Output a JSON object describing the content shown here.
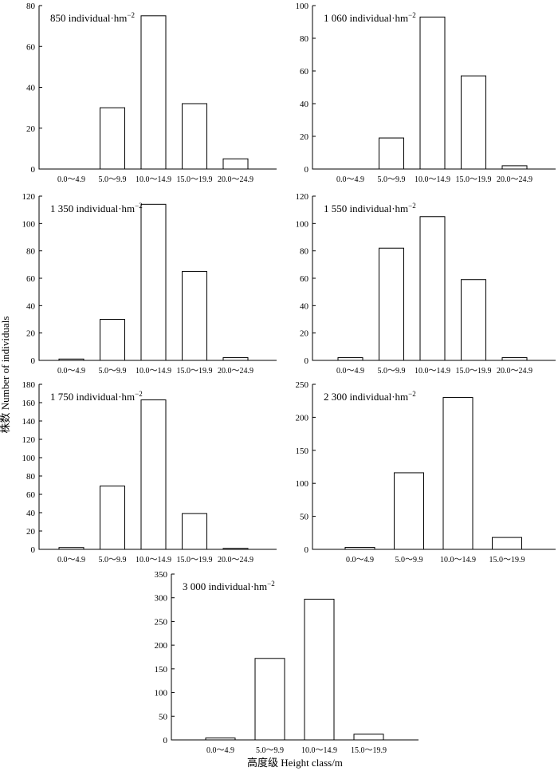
{
  "figure": {
    "ylabel": "株数 Number of individuals",
    "xlabel": "高度级 Height class/m"
  },
  "chart_data": [
    {
      "type": "bar",
      "title": "850 individual·hm",
      "title_sup": "−2",
      "categories": [
        "0.0～4.9",
        "5.0～9.9",
        "10.0～14.9",
        "15.0～19.9",
        "20.0～24.9"
      ],
      "values": [
        0,
        30,
        75,
        32,
        5
      ],
      "ylim": [
        0,
        80
      ],
      "yticks": [
        0,
        20,
        40,
        60,
        80
      ]
    },
    {
      "type": "bar",
      "title": "1 060 individual·hm",
      "title_sup": "−2",
      "categories": [
        "0.0～4.9",
        "5.0～9.9",
        "10.0～14.9",
        "15.0～19.9",
        "20.0～24.9"
      ],
      "values": [
        0,
        19,
        93,
        57,
        2
      ],
      "ylim": [
        0,
        100
      ],
      "yticks": [
        0,
        20,
        40,
        60,
        80,
        100
      ]
    },
    {
      "type": "bar",
      "title": "1 350 individual·hm",
      "title_sup": "−2",
      "categories": [
        "0.0～4.9",
        "5.0～9.9",
        "10.0～14.9",
        "15.0～19.9",
        "20.0～24.9"
      ],
      "values": [
        1,
        30,
        114,
        65,
        2
      ],
      "ylim": [
        0,
        120
      ],
      "yticks": [
        0,
        20,
        40,
        60,
        80,
        100,
        120
      ]
    },
    {
      "type": "bar",
      "title": "1 550 individual·hm",
      "title_sup": "−2",
      "categories": [
        "0.0～4.9",
        "5.0～9.9",
        "10.0～14.9",
        "15.0～19.9",
        "20.0～24.9"
      ],
      "values": [
        2,
        82,
        105,
        59,
        2
      ],
      "ylim": [
        0,
        120
      ],
      "yticks": [
        0,
        20,
        40,
        60,
        80,
        100,
        120
      ]
    },
    {
      "type": "bar",
      "title": "1 750 individual·hm",
      "title_sup": "−2",
      "categories": [
        "0.0～4.9",
        "5.0～9.9",
        "10.0～14.9",
        "15.0～19.9",
        "20.0～24.9"
      ],
      "values": [
        2,
        69,
        163,
        39,
        1
      ],
      "ylim": [
        0,
        180
      ],
      "yticks": [
        0,
        20,
        40,
        60,
        80,
        100,
        120,
        140,
        160,
        180
      ]
    },
    {
      "type": "bar",
      "title": "2 300 individual·hm",
      "title_sup": "−2",
      "categories": [
        "0.0～4.9",
        "5.0～9.9",
        "10.0～14.9",
        "15.0～19.9"
      ],
      "values": [
        3,
        116,
        230,
        18
      ],
      "ylim": [
        0,
        250
      ],
      "yticks": [
        0,
        50,
        100,
        150,
        200,
        250
      ]
    },
    {
      "type": "bar",
      "title": "3 000 individual·hm",
      "title_sup": "−2",
      "categories": [
        "0.0～4.9",
        "5.0～9.9",
        "10.0～14.9",
        "15.0～19.9"
      ],
      "values": [
        4,
        172,
        297,
        12
      ],
      "ylim": [
        0,
        350
      ],
      "yticks": [
        0,
        50,
        100,
        150,
        200,
        250,
        300,
        350
      ]
    }
  ]
}
